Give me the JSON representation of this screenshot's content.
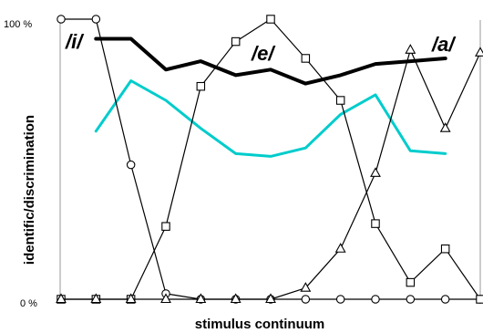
{
  "chart_data": {
    "type": "line",
    "xlabel": "stimulus continuum",
    "ylabel": "identific/discrimination",
    "y_tick_labels": [
      "0 %",
      "100 %"
    ],
    "ylim": [
      0,
      100
    ],
    "x": [
      1,
      2,
      3,
      4,
      5,
      6,
      7,
      8,
      9,
      10,
      11,
      12,
      13
    ],
    "grid": false,
    "annotations": [
      "/i/",
      "/e/",
      "/a/"
    ],
    "series": [
      {
        "name": "/i/",
        "marker": "circle",
        "color": "#000000",
        "values": [
          100,
          100,
          48,
          2,
          0,
          0,
          0,
          0,
          0,
          0,
          0,
          0,
          0
        ]
      },
      {
        "name": "/e/",
        "marker": "square",
        "color": "#000000",
        "values": [
          0,
          0,
          0,
          26,
          76,
          92,
          100,
          86,
          71,
          27,
          6,
          18,
          0
        ]
      },
      {
        "name": "/a/",
        "marker": "triangle",
        "color": "#000000",
        "values": [
          0,
          0,
          0,
          0,
          0,
          0,
          0,
          4,
          18,
          45,
          89,
          61,
          88
        ]
      },
      {
        "marker": "none",
        "color": "#000000",
        "width": 4,
        "x": [
          2,
          3,
          4,
          5,
          6,
          7,
          8,
          9,
          10,
          11,
          12
        ],
        "values": [
          93,
          93,
          82,
          85,
          80,
          82,
          77,
          80,
          84,
          85,
          86
        ]
      },
      {
        "marker": "none",
        "color": "#00cccc",
        "width": 3,
        "x": [
          2,
          3,
          4,
          5,
          6,
          7,
          8,
          9,
          10,
          11,
          12
        ],
        "values": [
          60,
          78,
          71,
          61,
          52,
          51,
          54,
          66,
          73,
          53,
          52
        ]
      }
    ]
  }
}
